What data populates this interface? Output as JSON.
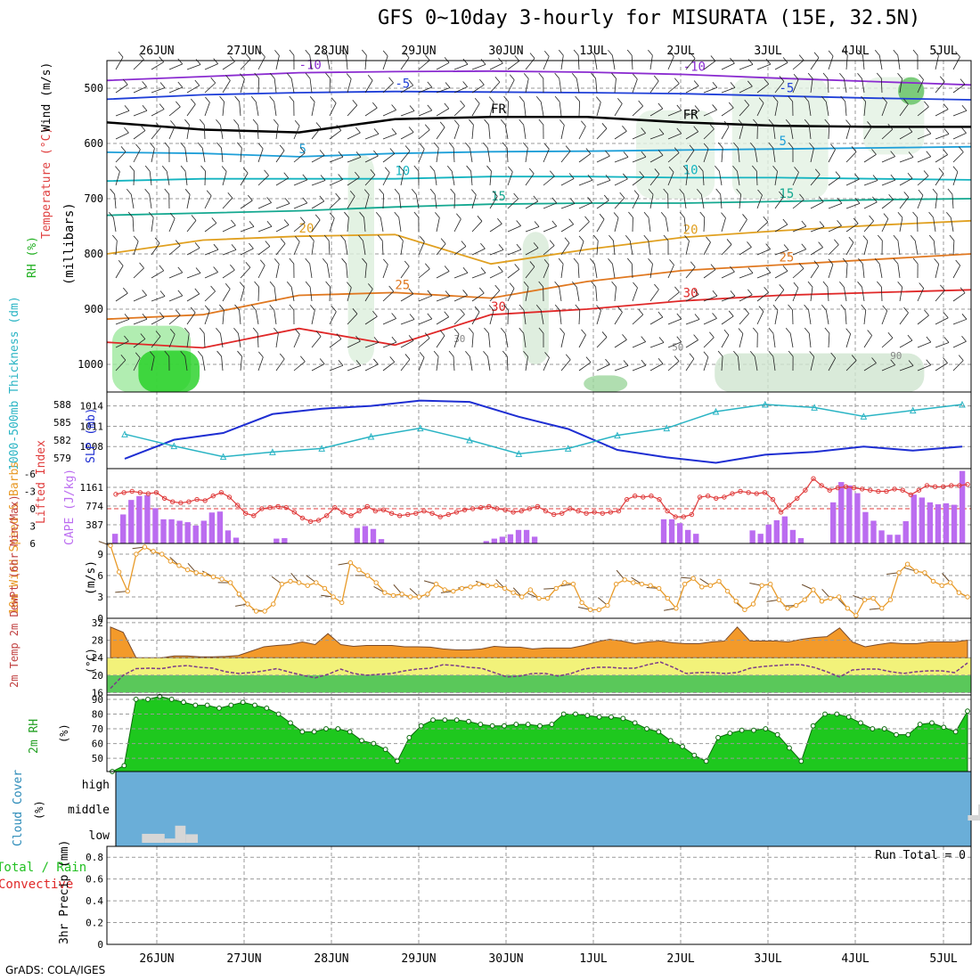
{
  "title": "GFS 0~10day 3-hourly for MISURATA (15E, 32.5N)",
  "credit": "GrADS: COLA/IGES",
  "colors": {
    "grid": "#9a9a9a",
    "temp_labels": [
      "#8a2bd0",
      "#1f3fd8",
      "#000000",
      "#1e9fd8",
      "#14b4c0",
      "#14a890",
      "#e0a020",
      "#e07820",
      "#e02828"
    ],
    "slp": "#1e2ed2",
    "thickness": "#2ab4c4",
    "lifted": "#e03c3c",
    "cape": "#bb6cf0",
    "wind10": "#e89a28",
    "barbs": "#6a4a2a",
    "temp_fill": "#f39a2a",
    "dewpt": "#7a3a8a",
    "rh_fill": "#1ec81e",
    "cloud_bg": "#6aaed8",
    "cloud_blocks": "#d6d6d6",
    "rain": "#22c022",
    "convective": "#e02828"
  },
  "chart_data": [
    {
      "id": "date_axis",
      "type": "table",
      "dates": [
        "26JUN",
        "27JUN",
        "28JUN",
        "29JUN",
        "30JUN",
        "1JUL",
        "2JUL",
        "3JUL",
        "4JUL",
        "5JUL"
      ]
    },
    {
      "id": "cross_section",
      "type": "line",
      "ylabel": "(millibars)",
      "side_labels": [
        "RH (%)",
        "Temperature (°C)",
        "Wind (m/s)"
      ],
      "pressure_ticks": [
        500,
        600,
        700,
        800,
        900,
        1000
      ],
      "isotherms": [
        {
          "label": "-10",
          "levels": [
            486,
            479,
            472,
            470,
            469,
            471,
            475,
            482,
            488,
            494
          ]
        },
        {
          "label": "-5",
          "levels": [
            520,
            512,
            508,
            506,
            507,
            508,
            510,
            514,
            518,
            521
          ]
        },
        {
          "label": "FR",
          "levels": [
            562,
            575,
            580,
            556,
            552,
            552,
            562,
            568,
            570,
            570
          ]
        },
        {
          "label": "5",
          "levels": [
            616,
            618,
            624,
            618,
            615,
            614,
            612,
            610,
            608,
            606
          ]
        },
        {
          "label": "10",
          "levels": [
            668,
            664,
            664,
            664,
            660,
            660,
            662,
            662,
            664,
            666
          ]
        },
        {
          "label": "15",
          "levels": [
            730,
            726,
            722,
            715,
            710,
            708,
            708,
            705,
            702,
            700
          ]
        },
        {
          "label": "20",
          "levels": [
            800,
            775,
            768,
            765,
            818,
            792,
            770,
            758,
            748,
            740
          ]
        },
        {
          "label": "25",
          "levels": [
            918,
            910,
            875,
            870,
            880,
            850,
            830,
            820,
            810,
            800
          ]
        },
        {
          "label": "30",
          "levels": [
            960,
            970,
            935,
            965,
            910,
            900,
            885,
            875,
            870,
            865
          ]
        }
      ],
      "rh_contour_labels": [
        "30",
        "50",
        "90"
      ]
    },
    {
      "id": "slp_thickness",
      "type": "line",
      "left_ylabel": "1000-500mb Thickness (dm)",
      "right_ylabel": "SLP (mb)",
      "thickness_ticks": [
        588,
        585,
        582,
        579
      ],
      "slp_ticks": [
        1014,
        1011,
        1008
      ],
      "series": [
        {
          "name": "SLP (mb)",
          "unit": "mb",
          "ylim": [
            1005.0,
            1015.8
          ],
          "values": [
            1006.2,
            1009.0,
            1010.0,
            1012.8,
            1013.6,
            1014.0,
            1014.8,
            1014.6,
            1012.4,
            1010.6,
            1007.5,
            1006.4,
            1005.6,
            1006.8,
            1007.2,
            1008.0,
            1007.4,
            1008.0
          ]
        },
        {
          "name": "1000-500mb Thickness (dm)",
          "unit": "dm",
          "ylim": [
            577.5,
            589.8
          ],
          "values": [
            583.0,
            581.0,
            579.2,
            580.0,
            580.6,
            582.6,
            584.0,
            582.0,
            579.7,
            580.6,
            582.8,
            584.0,
            586.8,
            588.0,
            587.5,
            586.0,
            587.0,
            588.0
          ]
        }
      ]
    },
    {
      "id": "cape_lifted",
      "type": "bar",
      "left_ylabel": "Lifted Index",
      "right_ylabel": "CAPE (J/kg)",
      "lifted_ticks": [
        "-6",
        "-3",
        "0",
        "3",
        "6"
      ],
      "cape_ticks": [
        1161,
        774,
        387
      ],
      "ylim": [
        0,
        1548
      ],
      "cape_values": [
        200,
        600,
        900,
        980,
        1000,
        730,
        500,
        500,
        470,
        440,
        370,
        470,
        640,
        660,
        270,
        120,
        0,
        0,
        0,
        0,
        100,
        110,
        0,
        0,
        0,
        0,
        0,
        0,
        0,
        0,
        320,
        360,
        300,
        90,
        0,
        0,
        0,
        0,
        0,
        0,
        0,
        0,
        0,
        0,
        0,
        0,
        50,
        100,
        140,
        190,
        280,
        280,
        140,
        0,
        0,
        0,
        0,
        0,
        0,
        0,
        0,
        0,
        0,
        0,
        0,
        0,
        0,
        0,
        500,
        500,
        420,
        280,
        200,
        0,
        0,
        0,
        0,
        0,
        0,
        270,
        200,
        390,
        480,
        560,
        280,
        110,
        0,
        0,
        0,
        850,
        1270,
        1200,
        1040,
        650,
        470,
        270,
        180,
        180,
        460,
        1010,
        950,
        850,
        810,
        830,
        800,
        1500
      ],
      "lifted_index": [
        -2.5,
        -2.8,
        -3.0,
        -2.8,
        -2.6,
        -2.8,
        -1.8,
        -1.2,
        -1.0,
        -1.2,
        -1.6,
        -1.4,
        -2.2,
        -2.8,
        -2.0,
        -0.6,
        0.8,
        1.2,
        0.0,
        -0.2,
        -0.4,
        -0.2,
        0.6,
        1.6,
        2.2,
        2.0,
        1.2,
        -0.2,
        0.6,
        1.2,
        0.4,
        -0.4,
        0.4,
        0.2,
        0.8,
        1.2,
        1.0,
        0.8,
        0.4,
        0.8,
        1.4,
        1.0,
        0.6,
        0.2,
        0.0,
        -0.2,
        -0.4,
        0.0,
        0.2,
        0.6,
        0.4,
        0.0,
        -0.4,
        0.4,
        1.0,
        0.8,
        0.0,
        0.4,
        0.8,
        0.6,
        0.8,
        0.6,
        0.4,
        -1.6,
        -2.2,
        -2.0,
        -2.2,
        -1.6,
        0.4,
        1.4,
        1.4,
        1.0,
        -2.0,
        -2.2,
        -1.8,
        -2.0,
        -2.6,
        -3.0,
        -2.8,
        -2.6,
        -2.8,
        -1.6,
        0.6,
        -0.6,
        -1.8,
        -3.2,
        -5.2,
        -4.0,
        -3.2,
        -3.6,
        -3.8,
        -3.6,
        -3.4,
        -3.2,
        -3.0,
        -3.0,
        -3.4,
        -3.2,
        -2.4,
        -3.2,
        -4.0,
        -3.8,
        -3.8,
        -4.0,
        -4.0,
        -4.2
      ]
    },
    {
      "id": "wind10",
      "type": "line",
      "ylabel": "10m Wind Speed & Barbs",
      "unit": "(m/s)",
      "ticks": [
        9,
        6,
        3,
        0
      ],
      "ylim": [
        0,
        10.5
      ],
      "values": [
        10.2,
        6.5,
        3.8,
        9.0,
        10.0,
        9.4,
        9.0,
        8.0,
        7.4,
        6.8,
        6.4,
        6.2,
        5.8,
        5.5,
        5.0,
        3.4,
        2.0,
        1.0,
        1.0,
        2.0,
        4.8,
        5.2,
        5.0,
        4.6,
        5.0,
        4.2,
        3.0,
        2.2,
        7.8,
        6.8,
        6.0,
        5.0,
        3.6,
        3.2,
        3.4,
        3.0,
        3.0,
        3.4,
        4.8,
        4.0,
        3.8,
        4.2,
        4.4,
        4.8,
        4.6,
        4.6,
        4.2,
        3.6,
        3.0,
        4.0,
        2.8,
        2.8,
        4.2,
        5.0,
        4.8,
        2.2,
        1.2,
        1.2,
        1.8,
        4.8,
        5.4,
        5.0,
        4.8,
        4.6,
        4.2,
        2.8,
        1.4,
        4.8,
        5.6,
        4.4,
        4.6,
        5.2,
        3.8,
        2.4,
        1.2,
        2.0,
        4.6,
        4.8,
        2.6,
        1.4,
        1.8,
        2.6,
        4.0,
        2.4,
        2.8,
        3.0,
        1.4,
        0.4,
        2.6,
        2.8,
        1.4,
        2.6,
        6.4,
        7.6,
        6.6,
        6.4,
        5.2,
        4.6,
        5.0,
        3.6,
        3.0
      ]
    },
    {
      "id": "temp2m",
      "type": "area",
      "ylabel": "2m Temp 2m DewPt (6hr Min/Max)",
      "unit": "(°C)",
      "ticks": [
        32,
        28,
        24,
        20,
        16
      ],
      "ylim": [
        15.5,
        33.0
      ],
      "temperature": [
        31.0,
        29.8,
        24.0,
        24.0,
        24.0,
        24.4,
        24.4,
        24.2,
        24.2,
        24.3,
        24.5,
        25.5,
        26.5,
        26.8,
        27.0,
        27.6,
        27.0,
        29.5,
        27.0,
        26.6,
        26.8,
        26.8,
        26.8,
        26.5,
        26.5,
        26.4,
        26.0,
        25.8,
        25.8,
        26.0,
        26.6,
        26.4,
        26.4,
        26.0,
        26.2,
        26.2,
        26.2,
        26.8,
        27.6,
        28.2,
        27.8,
        27.2,
        27.6,
        27.8,
        27.4,
        27.2,
        27.2,
        27.6,
        27.8,
        31.0,
        27.8,
        27.8,
        27.8,
        27.6,
        28.2,
        28.6,
        28.8,
        30.8,
        27.6,
        26.5,
        27.0,
        27.4,
        27.2,
        27.2,
        27.6,
        27.6,
        27.6,
        28.0
      ],
      "dewpoint": [
        17.0,
        20.0,
        21.5,
        21.6,
        21.5,
        22.0,
        22.2,
        21.8,
        21.6,
        20.8,
        20.4,
        20.6,
        21.0,
        21.5,
        20.7,
        20.0,
        19.4,
        20.2,
        21.4,
        20.4,
        20.0,
        20.2,
        20.4,
        21.0,
        21.4,
        21.6,
        22.4,
        22.2,
        21.8,
        21.6,
        20.6,
        19.6,
        19.8,
        20.4,
        20.4,
        19.8,
        20.4,
        21.4,
        21.8,
        21.8,
        21.6,
        21.6,
        22.4,
        23.0,
        21.8,
        20.4,
        20.6,
        20.6,
        20.4,
        20.6,
        21.6,
        22.0,
        22.2,
        22.4,
        22.4,
        21.8,
        20.8,
        19.6,
        21.2,
        21.4,
        21.4,
        20.8,
        20.4,
        20.8,
        21.0,
        21.0,
        20.6,
        22.8
      ]
    },
    {
      "id": "rh2m",
      "type": "area",
      "ylabel": "2m RH",
      "unit": "(%)",
      "ticks": [
        90,
        80,
        70,
        60,
        50
      ],
      "ylim": [
        41,
        93
      ],
      "values": [
        41,
        45,
        90,
        90,
        92,
        90,
        88,
        86,
        86,
        84,
        86,
        88,
        86,
        84,
        80,
        74,
        68,
        68,
        70,
        70,
        68,
        62,
        60,
        56,
        48,
        64,
        72,
        76,
        76,
        76,
        75,
        73,
        72,
        72,
        73,
        73,
        72,
        73,
        80,
        80,
        79,
        78,
        78,
        77,
        74,
        70,
        68,
        62,
        58,
        52,
        48,
        64,
        67,
        69,
        69,
        70,
        66,
        57,
        48,
        72,
        80,
        80,
        78,
        74,
        70,
        70,
        66,
        66,
        73,
        74,
        71,
        68,
        82
      ]
    },
    {
      "id": "cloud_cover",
      "type": "bar",
      "ylabel": "Cloud Cover",
      "unit": "(%)",
      "levels": [
        "high",
        "middle",
        "low"
      ],
      "blocks": [
        {
          "level": "low",
          "day": 0.34,
          "width_days": 0.26,
          "fraction": 0.42
        },
        {
          "level": "low",
          "day": 0.6,
          "width_days": 0.12,
          "fraction": 0.2
        },
        {
          "level": "low",
          "day": 0.72,
          "width_days": 0.12,
          "fraction": 0.8
        },
        {
          "level": "low",
          "day": 0.84,
          "width_days": 0.14,
          "fraction": 0.4
        },
        {
          "level": "middle",
          "day": 9.8,
          "width_days": 0.12,
          "fraction": 0.25
        },
        {
          "level": "middle",
          "day": 9.92,
          "width_days": 0.14,
          "fraction": 0.75
        }
      ]
    },
    {
      "id": "precip",
      "type": "bar",
      "ylabel": "3hr Precip (mm)",
      "side_labels": [
        "Total / Rain",
        "Convective"
      ],
      "ticks": [
        "0.8",
        "0.6",
        "0.4",
        "0.2",
        "0"
      ],
      "ylim": [
        0,
        0.9
      ],
      "run_total_label": "Run Total = 0",
      "total": [],
      "convective": []
    }
  ]
}
